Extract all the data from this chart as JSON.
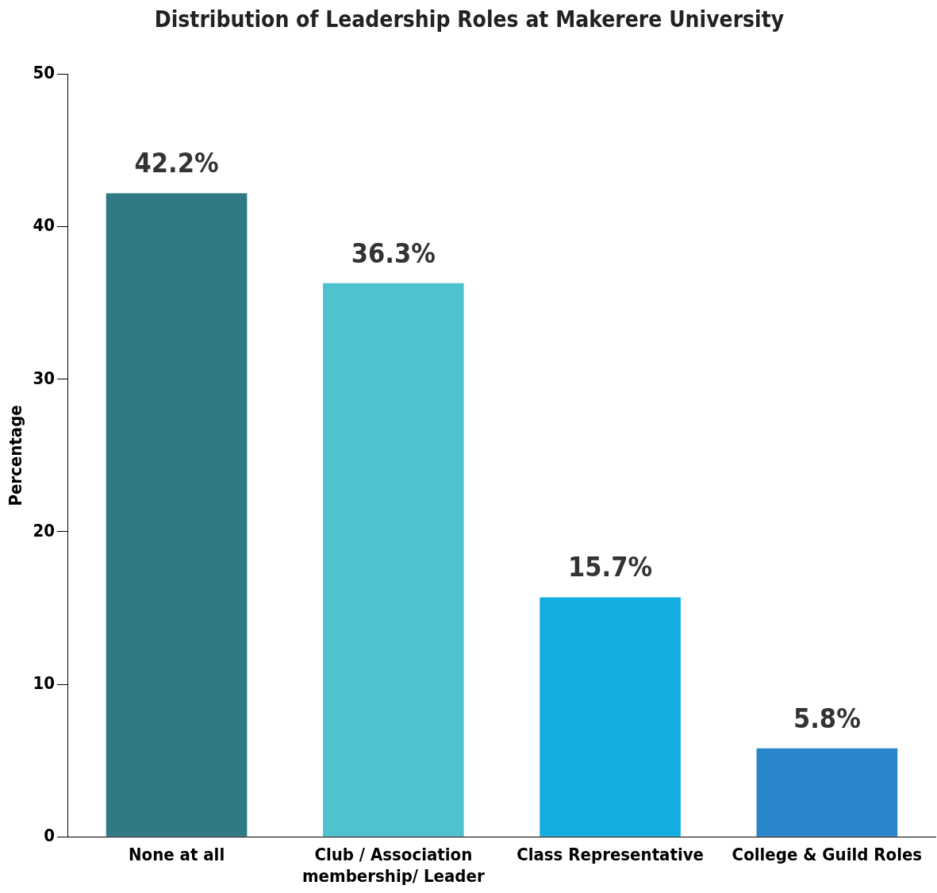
{
  "chart_data": {
    "type": "bar",
    "title": "Distribution of Leadership Roles at Makerere University",
    "ylabel": "Percentage",
    "categories": [
      "None at all",
      "Club / Association membership/ Leader",
      "Class Representative",
      "College & Guild Roles"
    ],
    "values": [
      42.2,
      36.3,
      15.7,
      5.8
    ],
    "colors": [
      "#2e7984",
      "#4ec3cf",
      "#14ade0",
      "#2a86cb"
    ],
    "value_labels": [
      "42.2%",
      "36.3%",
      "15.7%",
      "5.8%"
    ],
    "ylim": [
      0,
      50
    ],
    "yticks": [
      0,
      10,
      20,
      30,
      40,
      50
    ],
    "grid": false,
    "legend": false
  }
}
